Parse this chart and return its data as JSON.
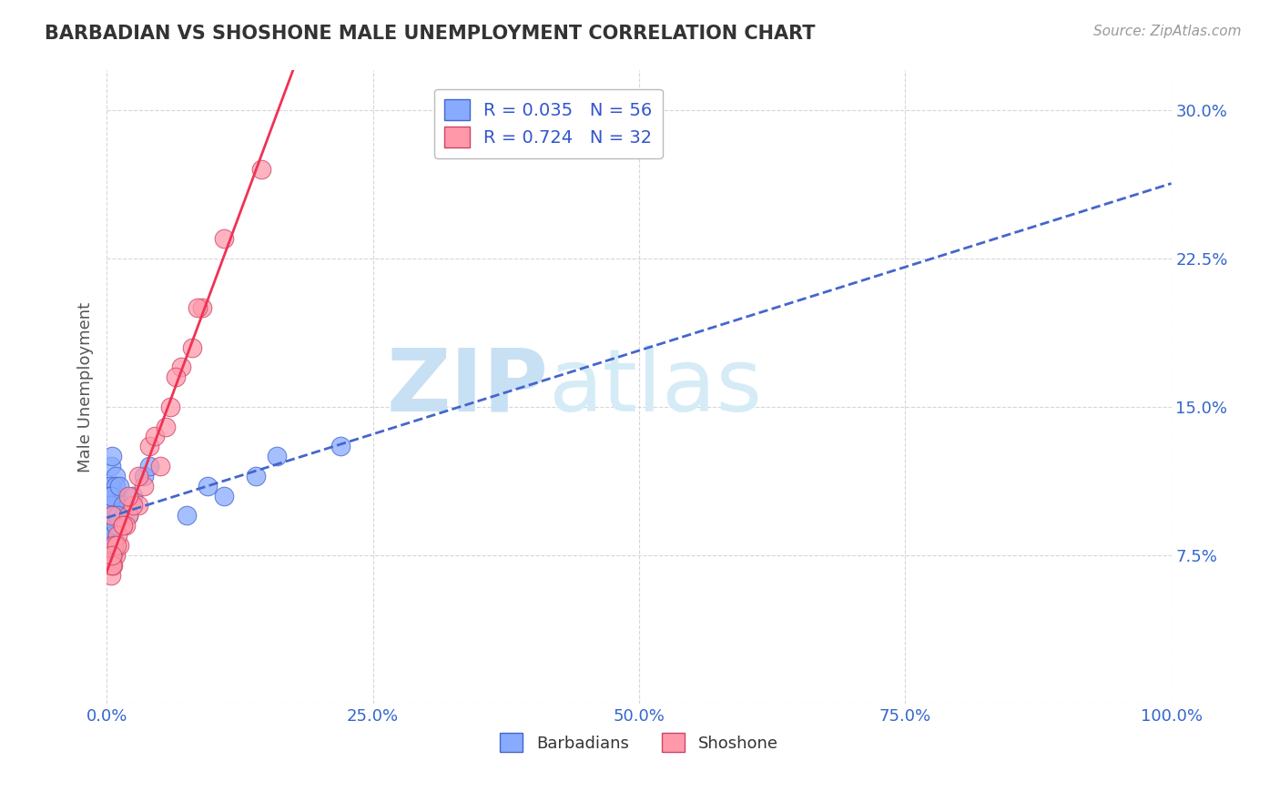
{
  "title": "BARBADIAN VS SHOSHONE MALE UNEMPLOYMENT CORRELATION CHART",
  "source_text": "Source: ZipAtlas.com",
  "ylabel": "Male Unemployment",
  "legend_line1": "R = 0.035   N = 56",
  "legend_line2": "R = 0.724   N = 32",
  "bottom_legend_1": "Barbadians",
  "bottom_legend_2": "Shoshone",
  "barbadian_color": "#88aaff",
  "shoshone_color": "#ff99aa",
  "barbadian_edge": "#4466cc",
  "shoshone_edge": "#cc4466",
  "trend_blue_color": "#4466cc",
  "trend_pink_color": "#ee3355",
  "xlim": [
    0,
    100
  ],
  "ylim": [
    0,
    32
  ],
  "yticks": [
    0,
    7.5,
    15.0,
    22.5,
    30.0
  ],
  "ytick_labels": [
    "",
    "7.5%",
    "15.0%",
    "22.5%",
    "30.0%"
  ],
  "xticks": [
    0,
    25,
    50,
    75,
    100
  ],
  "xtick_labels": [
    "0.0%",
    "25.0%",
    "50.0%",
    "75.0%",
    "100.0%"
  ],
  "background_color": "#ffffff",
  "grid_color": "#cccccc",
  "title_color": "#333333",
  "axis_label_color": "#555555",
  "tick_color": "#3366cc",
  "watermark_color": "#c8e0f4",
  "barbadian_x": [
    0.3,
    0.5,
    0.2,
    0.4,
    0.1,
    0.6,
    0.8,
    0.3,
    0.5,
    0.7,
    0.2,
    0.4,
    0.6,
    0.9,
    0.3,
    0.1,
    0.5,
    0.7,
    0.4,
    0.2,
    0.6,
    0.8,
    0.3,
    0.5,
    0.1,
    0.4,
    0.7,
    0.2,
    0.6,
    0.9,
    0.3,
    0.5,
    0.8,
    0.4,
    0.2,
    0.7,
    0.6,
    0.3,
    0.5,
    0.4,
    1.2,
    1.5,
    2.0,
    2.5,
    3.5,
    4.0,
    0.6,
    0.8,
    0.4,
    1.0,
    14.0,
    16.0,
    22.0,
    7.5,
    11.0,
    9.5
  ],
  "barbadian_y": [
    9.0,
    11.0,
    10.5,
    12.0,
    8.5,
    9.5,
    11.5,
    10.0,
    12.5,
    10.0,
    9.5,
    8.0,
    7.5,
    10.5,
    11.0,
    9.0,
    8.5,
    10.0,
    9.0,
    8.0,
    9.5,
    11.0,
    10.5,
    9.0,
    8.5,
    9.5,
    10.0,
    8.0,
    7.5,
    9.0,
    10.0,
    8.5,
    9.5,
    10.5,
    9.0,
    8.0,
    9.5,
    7.5,
    8.5,
    9.0,
    11.0,
    10.0,
    9.5,
    10.5,
    11.5,
    12.0,
    8.5,
    9.0,
    8.0,
    9.5,
    11.5,
    12.5,
    13.0,
    9.5,
    10.5,
    11.0
  ],
  "shoshone_x": [
    0.3,
    0.5,
    1.5,
    3.0,
    5.0,
    8.0,
    2.0,
    0.8,
    1.2,
    0.4,
    4.0,
    6.0,
    0.6,
    1.8,
    3.5,
    7.0,
    9.0,
    0.5,
    2.5,
    1.0,
    0.7,
    11.0,
    14.5,
    0.9,
    1.5,
    2.0,
    4.5,
    6.5,
    0.5,
    3.0,
    5.5,
    8.5
  ],
  "shoshone_y": [
    7.0,
    9.5,
    9.0,
    10.0,
    12.0,
    18.0,
    9.5,
    7.5,
    8.0,
    6.5,
    13.0,
    15.0,
    7.0,
    9.0,
    11.0,
    17.0,
    20.0,
    7.0,
    10.0,
    8.5,
    8.0,
    23.5,
    27.0,
    8.0,
    9.0,
    10.5,
    13.5,
    16.5,
    7.5,
    11.5,
    14.0,
    20.0
  ]
}
